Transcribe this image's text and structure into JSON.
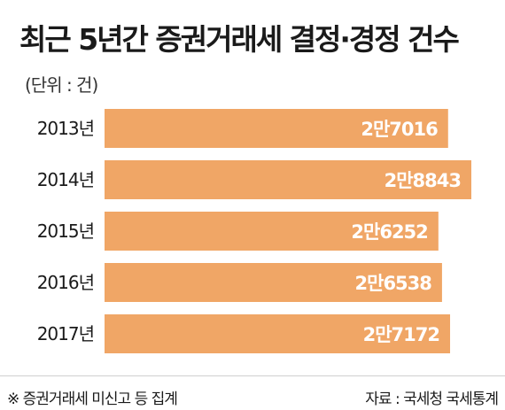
{
  "title": "최근 5년간 증권거래세 결정·경정 건수",
  "unit_label": "(단위 : 건)",
  "footnote": "※ 증권거래세 미신고 등 집계",
  "source": "자료 : 국세청 국세통계",
  "colors": {
    "bar": "#f0a666",
    "label": "#ffffff",
    "text": "#1a1a1a"
  },
  "chart_data": {
    "type": "bar",
    "orientation": "horizontal",
    "title": "최근 5년간 증권거래세 결정·경정 건수",
    "unit": "(단위 : 건)",
    "categories": [
      "2013년",
      "2014년",
      "2015년",
      "2016년",
      "2017년"
    ],
    "values": [
      27016,
      28843,
      26252,
      26538,
      27172
    ],
    "data_labels": [
      "2만7016",
      "2만8843",
      "2만6252",
      "2만6538",
      "2만7172"
    ],
    "xlim": [
      0,
      28843
    ],
    "grid": false,
    "legend": "none"
  }
}
